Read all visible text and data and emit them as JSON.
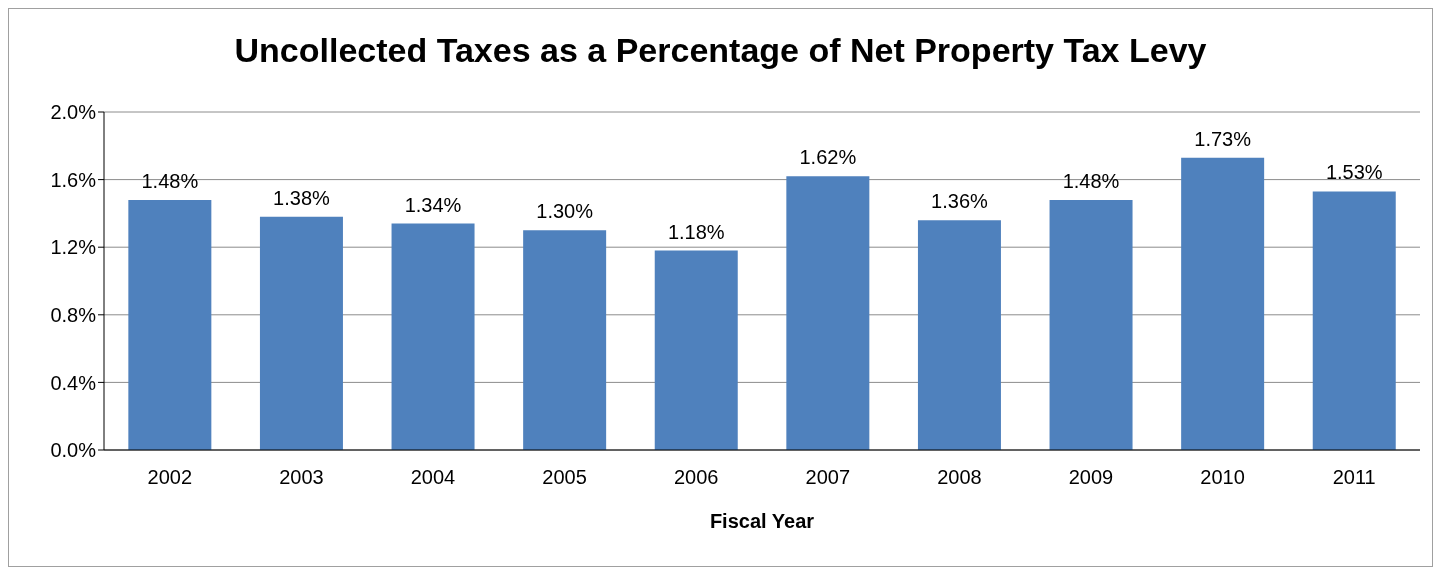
{
  "chart_data": {
    "type": "bar",
    "title": "Uncollected Taxes as a Percentage of Net Property Tax Levy",
    "xlabel": "Fiscal Year",
    "categories": [
      "2002",
      "2003",
      "2004",
      "2005",
      "2006",
      "2007",
      "2008",
      "2009",
      "2010",
      "2011"
    ],
    "values": [
      1.48,
      1.38,
      1.34,
      1.3,
      1.18,
      1.62,
      1.36,
      1.48,
      1.73,
      1.53
    ],
    "value_labels": [
      "1.48%",
      "1.38%",
      "1.34%",
      "1.30%",
      "1.18%",
      "1.62%",
      "1.36%",
      "1.48%",
      "1.73%",
      "1.53%"
    ],
    "color": "#4f81bd",
    "ylim": [
      0,
      2
    ],
    "yticks": [
      {
        "value": 0,
        "label": "0.0%"
      },
      {
        "value": 0.4,
        "label": "0.4%"
      },
      {
        "value": 0.8,
        "label": "0.8%"
      },
      {
        "value": 1.2,
        "label": "1.2%"
      },
      {
        "value": 1.6,
        "label": "1.6%"
      },
      {
        "value": 2,
        "label": "2.0%"
      }
    ],
    "grid": "y",
    "legend": false
  }
}
